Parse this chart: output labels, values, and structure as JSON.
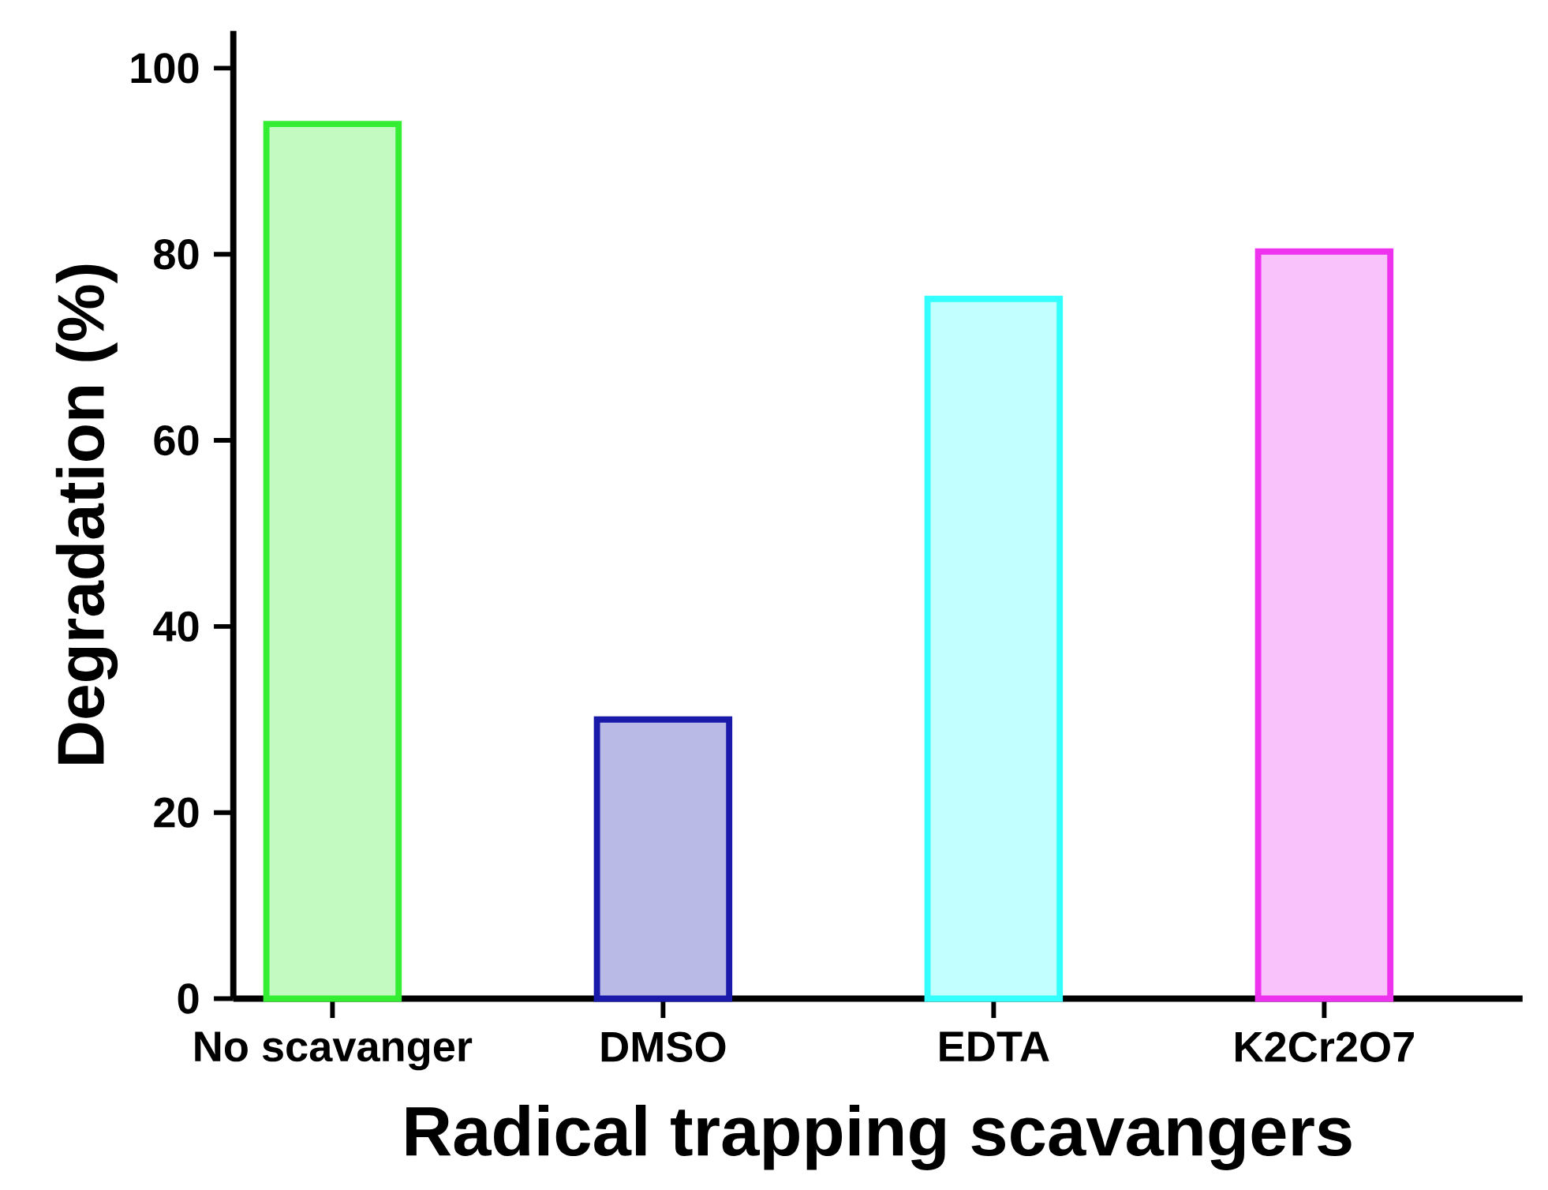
{
  "chart_data": {
    "type": "bar",
    "xlabel": "Radical trapping scavangers",
    "ylabel": "Degradation (%)",
    "categories": [
      "No scavanger",
      "DMSO",
      "EDTA",
      "K2Cr2O7"
    ],
    "values": [
      94,
      30,
      75.2,
      80.3
    ],
    "colors": [
      "#33ee33",
      "#1a1aaa",
      "#33ffff",
      "#ee33ee"
    ],
    "ylim": [
      0,
      104
    ],
    "yticks": [
      0,
      20,
      40,
      60,
      80,
      100
    ],
    "grid": false
  }
}
